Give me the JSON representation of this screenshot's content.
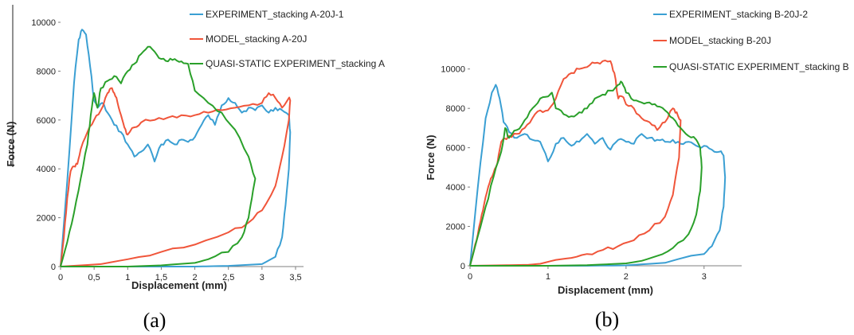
{
  "chart_data": [
    {
      "type": "line",
      "panel_label": "(a)",
      "xlabel": "Displacement (mm)",
      "ylabel": "Force (N)",
      "xlim": [
        0,
        3.5
      ],
      "ylim": [
        0,
        10000
      ],
      "x_ticks": [
        "0",
        "0,5",
        "1",
        "1,5",
        "2",
        "2,5",
        "3",
        "3,5"
      ],
      "y_ticks": [
        "0",
        "2000",
        "4000",
        "6000",
        "8000",
        "10000"
      ],
      "legend_position": "top-right",
      "series": [
        {
          "name": "EXPERIMENT_stacking A-20J-1",
          "color": "#3a9fd3",
          "x": [
            0,
            0.1,
            0.2,
            0.27,
            0.32,
            0.38,
            0.44,
            0.5,
            0.55,
            0.62,
            0.7,
            0.8,
            0.9,
            1.0,
            1.1,
            1.2,
            1.3,
            1.4,
            1.5,
            1.6,
            1.7,
            1.8,
            1.9,
            2.0,
            2.1,
            2.2,
            2.3,
            2.4,
            2.5,
            2.6,
            2.7,
            2.8,
            2.9,
            3.0,
            3.1,
            3.2,
            3.3,
            3.4,
            3.42,
            3.4,
            3.35,
            3.3,
            3.2,
            3.0,
            2.5,
            2.0,
            1.5,
            1.0,
            0.5,
            0
          ],
          "y": [
            0,
            3500,
            7500,
            9300,
            9700,
            9500,
            8200,
            6800,
            6500,
            6700,
            6300,
            5800,
            5500,
            5000,
            4500,
            4700,
            5000,
            4300,
            5000,
            5200,
            5000,
            5200,
            5100,
            5300,
            5800,
            6200,
            5800,
            6600,
            6900,
            6700,
            6300,
            6500,
            6400,
            6600,
            6300,
            6500,
            6400,
            6200,
            5500,
            4000,
            2500,
            1200,
            400,
            100,
            30,
            0,
            0,
            0,
            0,
            0
          ]
        },
        {
          "name": "MODEL_stacking A-20J",
          "color": "#f0553a",
          "x": [
            0,
            0.05,
            0.1,
            0.15,
            0.2,
            0.25,
            0.3,
            0.4,
            0.5,
            0.6,
            0.7,
            0.75,
            0.8,
            0.85,
            0.9,
            0.95,
            1.0,
            1.1,
            1.2,
            1.4,
            1.6,
            1.8,
            2.0,
            2.2,
            2.4,
            2.6,
            2.8,
            3.0,
            3.1,
            3.2,
            3.3,
            3.4,
            3.42,
            3.4,
            3.3,
            3.2,
            3.0,
            2.8,
            2.5,
            2.0,
            1.5,
            1.0,
            0.6,
            0
          ],
          "y": [
            0,
            1200,
            2800,
            3900,
            4100,
            4200,
            4800,
            5500,
            6000,
            6400,
            7100,
            7300,
            7100,
            6700,
            6200,
            5700,
            5400,
            5700,
            5900,
            6000,
            6100,
            6200,
            6200,
            6300,
            6400,
            6500,
            6600,
            6700,
            7100,
            6900,
            6500,
            6900,
            6800,
            6000,
            4500,
            3300,
            2300,
            1800,
            1400,
            900,
            600,
            300,
            100,
            0
          ]
        },
        {
          "name": "QUASI-STATIC EXPERIMENT_stacking A",
          "color": "#2aa02a",
          "x": [
            0,
            0.1,
            0.2,
            0.3,
            0.4,
            0.45,
            0.5,
            0.55,
            0.6,
            0.7,
            0.8,
            0.9,
            1.0,
            1.1,
            1.2,
            1.3,
            1.4,
            1.5,
            1.6,
            1.7,
            1.8,
            1.9,
            2.0,
            2.2,
            2.4,
            2.6,
            2.8,
            2.9,
            2.85,
            2.8,
            2.7,
            2.5,
            2.2,
            2.0,
            1.5,
            1.0,
            0.5,
            0
          ],
          "y": [
            0,
            1000,
            2200,
            3600,
            5000,
            6200,
            7100,
            6500,
            7300,
            7600,
            7800,
            7500,
            8000,
            8300,
            8700,
            9000,
            8800,
            8500,
            8400,
            8500,
            8400,
            8300,
            7200,
            6700,
            6300,
            5600,
            4500,
            3600,
            2800,
            2000,
            1200,
            600,
            300,
            150,
            50,
            0,
            0,
            0
          ]
        }
      ]
    },
    {
      "type": "line",
      "panel_label": "(b)",
      "xlabel": "Displacement (mm)",
      "ylabel": "Force (N)",
      "xlim": [
        0,
        3.5
      ],
      "ylim": [
        0,
        11000
      ],
      "x_ticks": [
        "0",
        "1",
        "2",
        "3"
      ],
      "y_ticks": [
        "0",
        "2000",
        "4000",
        "6000",
        "8000",
        "10000"
      ],
      "legend_position": "top-right",
      "series": [
        {
          "name": "EXPERIMENT_stacking B-20J-2",
          "color": "#3a9fd3",
          "x": [
            0,
            0.1,
            0.2,
            0.28,
            0.33,
            0.38,
            0.43,
            0.5,
            0.6,
            0.7,
            0.8,
            0.9,
            1.0,
            1.1,
            1.2,
            1.3,
            1.4,
            1.5,
            1.6,
            1.7,
            1.8,
            1.9,
            2.0,
            2.1,
            2.2,
            2.3,
            2.4,
            2.5,
            2.6,
            2.7,
            2.8,
            2.9,
            3.0,
            3.1,
            3.2,
            3.25,
            3.27,
            3.25,
            3.2,
            3.1,
            3.0,
            2.5,
            2.0,
            1.5,
            1.0,
            0.5,
            0
          ],
          "y": [
            0,
            4000,
            7500,
            8800,
            9200,
            8500,
            7300,
            6800,
            6500,
            6700,
            6400,
            6300,
            5300,
            6200,
            6500,
            6100,
            6300,
            6700,
            6200,
            6500,
            5900,
            6400,
            6300,
            6200,
            6700,
            6500,
            6400,
            6300,
            6400,
            6200,
            6300,
            6100,
            6100,
            5900,
            5800,
            5600,
            4500,
            3000,
            1800,
            1000,
            600,
            150,
            20,
            0,
            0,
            0,
            0
          ]
        },
        {
          "name": "MODEL_stacking B-20J",
          "color": "#f0553a",
          "x": [
            0,
            0.05,
            0.1,
            0.15,
            0.2,
            0.25,
            0.3,
            0.35,
            0.4,
            0.5,
            0.6,
            0.7,
            0.8,
            0.9,
            1.0,
            1.1,
            1.2,
            1.3,
            1.4,
            1.5,
            1.6,
            1.7,
            1.8,
            1.85,
            1.9,
            1.95,
            2.0,
            2.1,
            2.2,
            2.3,
            2.4,
            2.5,
            2.6,
            2.65,
            2.7,
            2.68,
            2.6,
            2.5,
            2.3,
            2.1,
            1.9,
            1.7,
            1.5,
            1.3,
            1.1,
            0.9,
            0.75,
            0
          ],
          "y": [
            0,
            800,
            1600,
            2600,
            3500,
            4200,
            4700,
            5200,
            6300,
            6600,
            6700,
            7000,
            7500,
            7900,
            7900,
            8500,
            9500,
            9800,
            10000,
            10100,
            10300,
            10400,
            10400,
            9800,
            8500,
            8600,
            8200,
            8000,
            7500,
            7300,
            6900,
            7300,
            8000,
            7800,
            7400,
            5500,
            3600,
            2500,
            1800,
            1300,
            1000,
            800,
            600,
            400,
            300,
            100,
            50,
            0
          ]
        },
        {
          "name": "QUASI-STATIC EXPERIMENT_stacking B",
          "color": "#2aa02a",
          "x": [
            0,
            0.1,
            0.2,
            0.3,
            0.4,
            0.45,
            0.5,
            0.6,
            0.7,
            0.8,
            0.9,
            1.0,
            1.05,
            1.1,
            1.2,
            1.3,
            1.4,
            1.5,
            1.6,
            1.7,
            1.8,
            1.9,
            1.95,
            2.0,
            2.1,
            2.2,
            2.3,
            2.4,
            2.5,
            2.6,
            2.7,
            2.8,
            2.9,
            2.95,
            2.97,
            2.95,
            2.9,
            2.8,
            2.6,
            2.4,
            2.2,
            2.0,
            1.5,
            1.0,
            0.5,
            0
          ],
          "y": [
            0,
            1500,
            3000,
            4500,
            5800,
            7000,
            6500,
            6900,
            7400,
            8000,
            8500,
            8600,
            8800,
            8000,
            7700,
            7600,
            7800,
            8000,
            8500,
            8700,
            8900,
            9200,
            9300,
            8800,
            8400,
            8300,
            8300,
            8100,
            7900,
            7500,
            7000,
            6600,
            6400,
            6000,
            5000,
            3800,
            2600,
            1600,
            900,
            500,
            250,
            120,
            30,
            0,
            0,
            0
          ]
        }
      ]
    }
  ]
}
